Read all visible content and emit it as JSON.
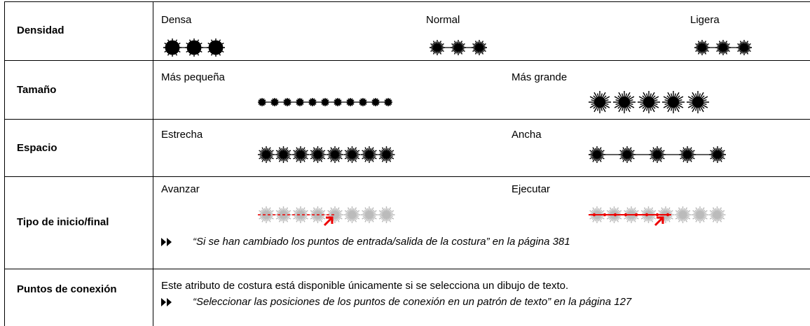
{
  "rows": [
    {
      "label": "Densidad",
      "options": [
        "Densa",
        "Normal",
        "Ligera"
      ]
    },
    {
      "label": "Tamaño",
      "options": [
        "Más pequeña",
        "Más grande"
      ]
    },
    {
      "label": "Espacio",
      "options": [
        "Estrecha",
        "Ancha"
      ]
    },
    {
      "label": "Tipo de inicio/final",
      "options": [
        "Avanzar",
        "Ejecutar"
      ],
      "reference": "“Si se han cambiado los puntos de entrada/salida de la costura” en la página 381"
    },
    {
      "label": "Puntos de conexión",
      "text": "Este atributo de costura está disponible únicamente si se selecciona un dibujo de texto.",
      "reference": "“Seleccionar las posiciones de los puntos de conexión en un patrón de texto” en la página 127"
    }
  ]
}
